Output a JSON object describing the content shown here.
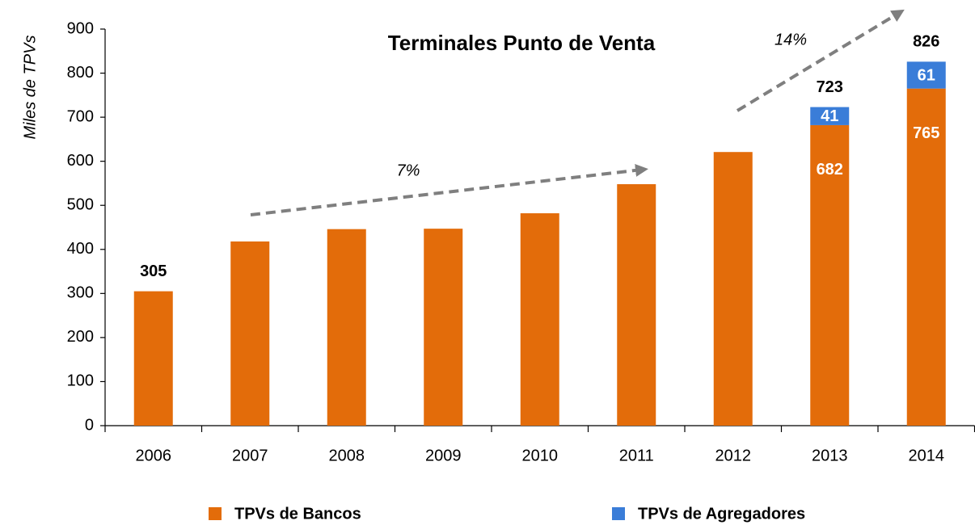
{
  "chart_data": {
    "type": "stacked-bar",
    "title": "Terminales Punto de Venta",
    "y_label": "Miles de TPVs",
    "categories": [
      "2006",
      "2007",
      "2008",
      "2009",
      "2010",
      "2011",
      "2012",
      "2013",
      "2014"
    ],
    "series": [
      {
        "name": "TPVs de Bancos",
        "color": "#e36c0a",
        "values": [
          305,
          418,
          446,
          447,
          482,
          548,
          621,
          682,
          765
        ]
      },
      {
        "name": "TPVs de Agregadores",
        "color": "#3a7dd8",
        "values": [
          null,
          null,
          null,
          null,
          null,
          null,
          null,
          41,
          61
        ]
      }
    ],
    "totals": [
      305,
      null,
      null,
      null,
      null,
      null,
      null,
      723,
      826
    ],
    "annotations": [
      "7%",
      "14%"
    ],
    "ylim": [
      0,
      900
    ],
    "yticks": [
      0,
      100,
      200,
      300,
      400,
      500,
      600,
      700,
      800,
      900
    ],
    "grid": false,
    "legend": "bottom"
  }
}
